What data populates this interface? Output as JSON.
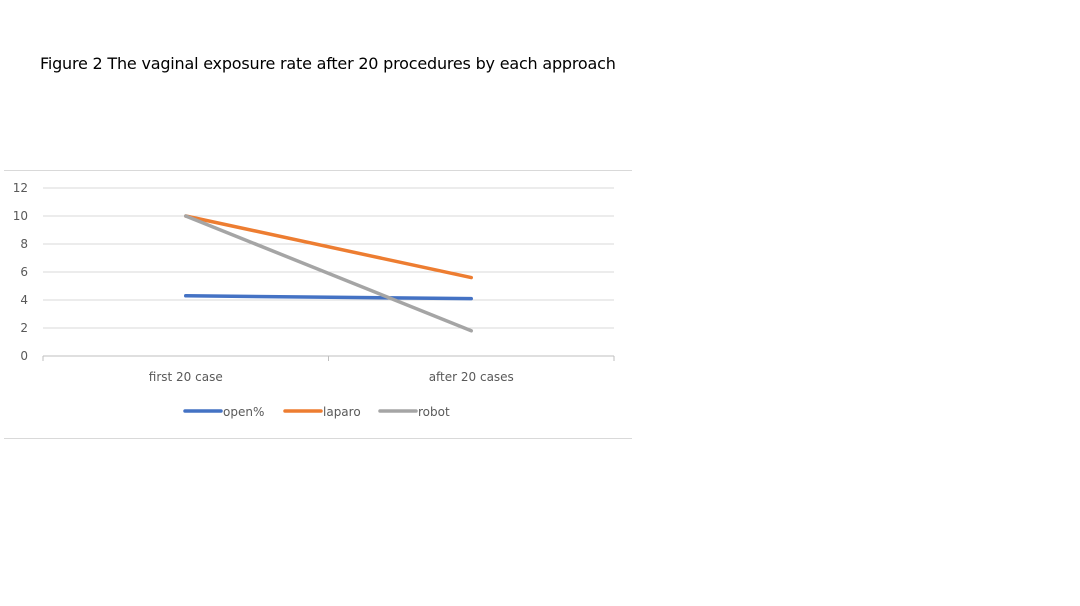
{
  "caption": "Figure 2 The vaginal exposure rate after 20 procedures by each approach",
  "chart_data": {
    "type": "line",
    "title": "",
    "xlabel": "",
    "ylabel": "",
    "categories": [
      "first 20 case",
      "after 20 cases"
    ],
    "ylim": [
      0,
      12
    ],
    "yticks": [
      0,
      2,
      4,
      6,
      8,
      10,
      12
    ],
    "grid": true,
    "legend_position": "bottom",
    "series": [
      {
        "name": "open%",
        "values": [
          4.3,
          4.1
        ],
        "color": "#4472c4"
      },
      {
        "name": "laparo",
        "values": [
          10,
          5.6
        ],
        "color": "#ed7d31"
      },
      {
        "name": "robot",
        "values": [
          10,
          1.8
        ],
        "color": "#a5a5a5"
      }
    ]
  }
}
